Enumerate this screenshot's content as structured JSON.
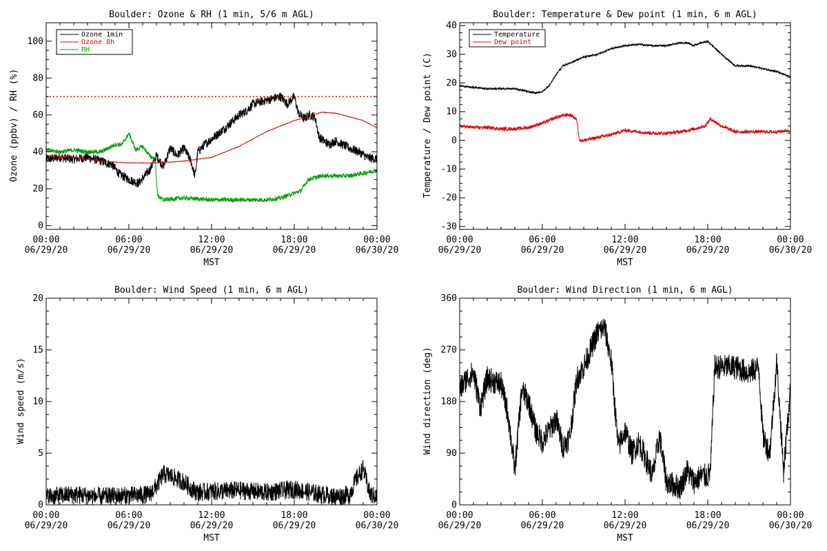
{
  "chart_data": [
    {
      "id": "ozone",
      "type": "line",
      "title": "Boulder: Ozone & RH (1 min, 5/6 m AGL)",
      "xlabel": "MST",
      "ylabel": "Ozone (ppbv) / RH (%)",
      "xlim": [
        0,
        24
      ],
      "ylim": [
        -2,
        110
      ],
      "yticks": [
        0,
        20,
        40,
        60,
        80,
        100
      ],
      "xticks": [
        {
          "x": 0,
          "time": "00:00",
          "date": "06/29/20"
        },
        {
          "x": 6,
          "time": "06:00",
          "date": "06/29/20"
        },
        {
          "x": 12,
          "time": "12:00",
          "date": "06/29/20"
        },
        {
          "x": 18,
          "time": "18:00",
          "date": "06/29/20"
        },
        {
          "x": 24,
          "time": "00:00",
          "date": "06/30/20"
        }
      ],
      "legend_position": "top-left",
      "reference_line": {
        "y": 70,
        "color": "#e00000",
        "style": "dotted"
      },
      "series": [
        {
          "name": "Ozone 1min",
          "color": "#000000",
          "noise": 2.5,
          "x": [
            0,
            1,
            2,
            3,
            4,
            4.8,
            5.3,
            6,
            6.7,
            7.5,
            8,
            8.5,
            9,
            9.5,
            10,
            10.5,
            10.8,
            11,
            11.5,
            12,
            13,
            14,
            14.5,
            15,
            16,
            17,
            17.5,
            18,
            18.3,
            18.7,
            19.1,
            19.5,
            19.8,
            20.5,
            21,
            22,
            22.7,
            23.3,
            24
          ],
          "y": [
            36,
            37,
            36,
            37,
            35,
            33,
            28,
            25,
            23,
            30,
            38,
            32,
            42,
            38,
            42,
            35,
            27,
            40,
            44,
            47,
            53,
            60,
            62,
            66,
            68,
            70,
            66,
            70,
            61,
            58,
            60,
            59,
            48,
            44,
            46,
            42,
            40,
            37,
            36
          ]
        },
        {
          "name": "Ozone 8h",
          "color": "#e00000",
          "noise": 0.1,
          "x": [
            0,
            2,
            4,
            6,
            8,
            10,
            12,
            14,
            16,
            18,
            19,
            20,
            21,
            22,
            23,
            24
          ],
          "y": [
            38,
            37,
            35,
            34,
            34,
            35,
            37,
            43,
            51,
            57,
            59,
            61.5,
            61,
            59,
            57,
            53
          ]
        },
        {
          "name": "RH",
          "color": "#00a000",
          "noise": 1.2,
          "x": [
            0,
            1,
            2,
            3,
            4,
            5,
            5.5,
            6,
            6.5,
            7,
            7.5,
            7.9,
            8,
            8.1,
            8.5,
            10,
            12,
            14,
            16,
            17,
            18.5,
            19,
            20,
            22,
            24
          ],
          "y": [
            41,
            40,
            41,
            40,
            40,
            44,
            44,
            50,
            41,
            43,
            38,
            36,
            24,
            16,
            14,
            15,
            14,
            14,
            14,
            15,
            19,
            25,
            27,
            27,
            30
          ]
        }
      ]
    },
    {
      "id": "temp",
      "type": "line",
      "title": "Boulder: Temperature & Dew point (1 min, 6 m AGL)",
      "xlabel": "MST",
      "ylabel": "Temperature / Dew point (C)",
      "xlim": [
        0,
        24
      ],
      "ylim": [
        -31,
        41
      ],
      "yticks": [
        -30,
        -20,
        -10,
        0,
        10,
        20,
        30,
        40
      ],
      "xticks": [
        {
          "x": 0,
          "time": "00:00",
          "date": "06/29/20"
        },
        {
          "x": 6,
          "time": "06:00",
          "date": "06/29/20"
        },
        {
          "x": 12,
          "time": "12:00",
          "date": "06/29/20"
        },
        {
          "x": 18,
          "time": "18:00",
          "date": "06/29/20"
        },
        {
          "x": 24,
          "time": "00:00",
          "date": "06/30/20"
        }
      ],
      "legend_position": "top-left",
      "series": [
        {
          "name": "Temperature",
          "color": "#000000",
          "noise": 0.3,
          "x": [
            0,
            1,
            2,
            3,
            4,
            5,
            5.5,
            6,
            6.5,
            7,
            7.5,
            8,
            9,
            10,
            11,
            12,
            13,
            14,
            15,
            16,
            16.5,
            17,
            17.5,
            18,
            19,
            20,
            21,
            22,
            23,
            24
          ],
          "y": [
            19,
            18.5,
            18,
            18,
            18,
            17,
            16.5,
            17,
            19,
            23,
            26,
            27,
            29,
            30,
            32,
            33,
            33.5,
            33,
            33,
            34,
            34,
            33,
            34,
            34.5,
            30,
            26,
            26,
            25,
            24,
            22
          ]
        },
        {
          "name": "Dew point",
          "color": "#e00000",
          "noise": 0.6,
          "x": [
            0,
            1,
            2,
            3,
            4,
            5,
            6,
            7,
            7.8,
            8.2,
            8.5,
            8.7,
            9,
            10,
            11,
            12,
            13,
            14,
            15,
            16,
            17,
            17.8,
            18.2,
            19,
            20,
            21,
            22,
            23,
            24
          ],
          "y": [
            5,
            4.5,
            4.5,
            4,
            4,
            4.5,
            6,
            8,
            9,
            8.5,
            7,
            0,
            0,
            1,
            2,
            3.5,
            3,
            2.5,
            2.5,
            3,
            4,
            5,
            7.5,
            5,
            3,
            3,
            3,
            3,
            3.5
          ]
        }
      ]
    },
    {
      "id": "wspd",
      "type": "line",
      "title": "Boulder: Wind Speed (1 min, 6 m AGL)",
      "xlabel": "MST",
      "ylabel": "Wind speed (m/s)",
      "xlim": [
        0,
        24
      ],
      "ylim": [
        0,
        20
      ],
      "yticks": [
        0,
        5,
        10,
        15,
        20
      ],
      "xticks": [
        {
          "x": 0,
          "time": "00:00",
          "date": "06/29/20"
        },
        {
          "x": 6,
          "time": "06:00",
          "date": "06/29/20"
        },
        {
          "x": 12,
          "time": "12:00",
          "date": "06/29/20"
        },
        {
          "x": 18,
          "time": "18:00",
          "date": "06/29/20"
        },
        {
          "x": 24,
          "time": "00:00",
          "date": "06/30/20"
        }
      ],
      "series": [
        {
          "name": "",
          "color": "#000000",
          "noise": 0.9,
          "floor": 0,
          "x": [
            0,
            2,
            4,
            6,
            7.5,
            8,
            8.5,
            9,
            10,
            10.5,
            11,
            12,
            14,
            16,
            18,
            20,
            21,
            22,
            22.5,
            23,
            23.5,
            24
          ],
          "y": [
            0.8,
            1.0,
            0.8,
            0.9,
            1.0,
            1.8,
            3.0,
            2.8,
            2.2,
            1.6,
            1.2,
            1.3,
            1.4,
            1.2,
            1.5,
            1.0,
            0.8,
            1.0,
            2.5,
            3.5,
            1.0,
            0.8
          ]
        }
      ]
    },
    {
      "id": "wdir",
      "type": "line",
      "title": "Boulder: Wind Direction (1 min, 6 m AGL)",
      "xlabel": "MST",
      "ylabel": "Wind direction (deg)",
      "xlim": [
        0,
        24
      ],
      "ylim": [
        0,
        360
      ],
      "yticks": [
        0,
        90,
        180,
        270,
        360
      ],
      "xticks": [
        {
          "x": 0,
          "time": "00:00",
          "date": "06/29/20"
        },
        {
          "x": 6,
          "time": "06:00",
          "date": "06/29/20"
        },
        {
          "x": 12,
          "time": "12:00",
          "date": "06/29/20"
        },
        {
          "x": 18,
          "time": "18:00",
          "date": "06/29/20"
        },
        {
          "x": 24,
          "time": "00:00",
          "date": "06/30/20"
        }
      ],
      "series": [
        {
          "name": "",
          "color": "#000000",
          "noise": 22,
          "floor": 0,
          "ceil": 360,
          "x": [
            0,
            0.5,
            1,
            1.5,
            2,
            3,
            3.5,
            4,
            4.5,
            5,
            5.5,
            6,
            7,
            7.5,
            8,
            8.5,
            9,
            10,
            10.5,
            11,
            11.5,
            12,
            12.5,
            13,
            14,
            14.5,
            15,
            16,
            16.5,
            17,
            17.5,
            18,
            18.2,
            18.5,
            19,
            20,
            21,
            21.7,
            22,
            22.5,
            23,
            23.5,
            24
          ],
          "y": [
            200,
            220,
            230,
            170,
            220,
            210,
            160,
            60,
            200,
            180,
            130,
            110,
            150,
            100,
            120,
            220,
            240,
            300,
            310,
            250,
            100,
            130,
            90,
            110,
            50,
            120,
            40,
            30,
            60,
            40,
            50,
            50,
            60,
            240,
            240,
            240,
            230,
            240,
            120,
            90,
            250,
            60,
            200
          ]
        }
      ]
    }
  ]
}
